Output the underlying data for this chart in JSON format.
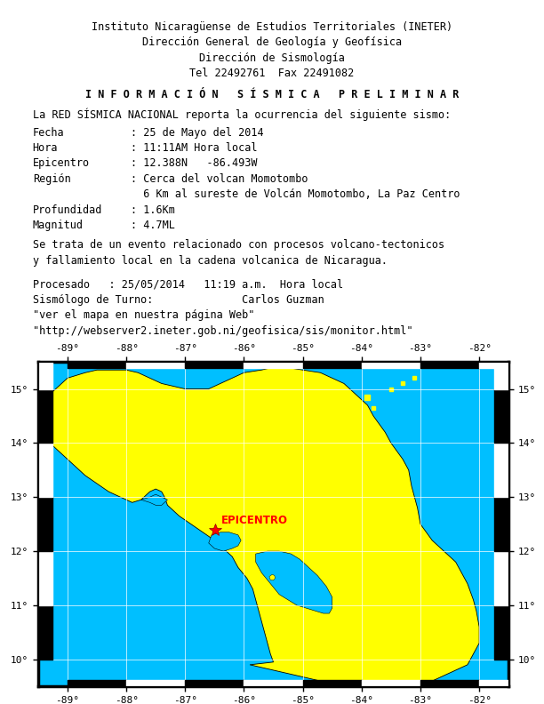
{
  "header_lines": [
    "Instituto Nicaragüense de Estudios Territoriales (INETER)",
    "Dirección General de Geología y Geofísica",
    "Dirección de Sismología",
    "Tel 22492761  Fax 22491082"
  ],
  "info_title": "I N F O R M A C I Ó N   S Í S M I C A   P R E L I M I N A R",
  "info_line": "La RED SÍSMICA NACIONAL reporta la ocurrencia del siguiente sismo:",
  "field_rows": [
    [
      "Fecha",
      ": 25 de Mayo del 2014"
    ],
    [
      "Hora",
      ": 11:11AM Hora local"
    ],
    [
      "Epicentro",
      ": 12.388N   -86.493W"
    ],
    [
      "Región",
      ": Cerca del volcan Momotombo"
    ],
    [
      "",
      "  6 Km al sureste de Volcán Momotombo, La Paz Centro"
    ],
    [
      "Profundidad",
      ": 1.6Km"
    ],
    [
      "Magnitud",
      ": 4.7ML"
    ]
  ],
  "description": [
    "Se trata de un evento relacionado con procesos volcano-tectonicos",
    "y fallamiento local en la cadena volcanica de Nicaragua."
  ],
  "footer_lines": [
    "Procesado   : 25/05/2014   11:19 a.m.  Hora local",
    "Sismólogo de Turno:              Carlos Guzman",
    "\"ver el mapa en nuestra página Web\"",
    "\"http://webserver2.ineter.gob.ni/geofisica/sis/monitor.html\""
  ],
  "map_lonmin": -89.5,
  "map_lonmax": -81.5,
  "map_latmin": 9.5,
  "map_latmax": 15.5,
  "epicenter_lon": -86.493,
  "epicenter_lat": 12.388,
  "epicentro_label": "EPICENTRO",
  "ocean_color": "#00BFFF",
  "land_color": "#FFFF00",
  "bg_color": "#FFFFFF",
  "font_size": 8.5,
  "map_font_size": 8.0
}
